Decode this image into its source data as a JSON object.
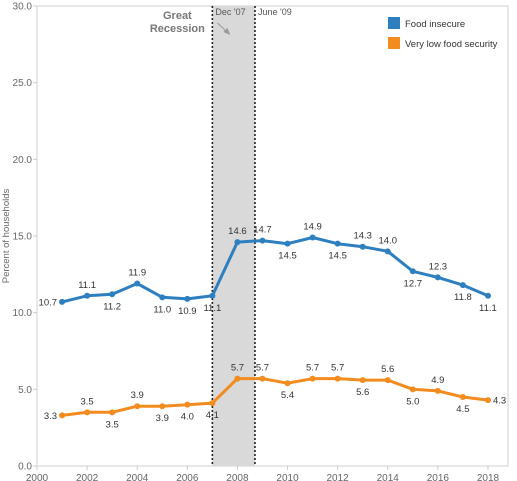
{
  "chart_data": {
    "type": "line",
    "ylabel": "Percent of households",
    "xlabel": "",
    "ylim": [
      0,
      30
    ],
    "xlim": [
      2000,
      2018.8
    ],
    "y_ticks": [
      0,
      5,
      10,
      15,
      20,
      25,
      30
    ],
    "y_tick_labels": [
      "0.0",
      "5.0",
      "10.0",
      "15.0",
      "20.0",
      "25.0",
      "30.0"
    ],
    "x_ticks": [
      2000,
      2002,
      2004,
      2006,
      2008,
      2010,
      2012,
      2014,
      2016,
      2018
    ],
    "x_tick_labels": [
      "2000",
      "2002",
      "2004",
      "2006",
      "2008",
      "2010",
      "2012",
      "2014",
      "2016",
      "2018"
    ],
    "x": [
      2001,
      2002,
      2003,
      2004,
      2005,
      2006,
      2007,
      2008,
      2009,
      2010,
      2011,
      2012,
      2013,
      2014,
      2015,
      2016,
      2017,
      2018
    ],
    "series": [
      {
        "name": "Food insecure",
        "color": "#2e7fbf",
        "values": [
          10.7,
          11.1,
          11.2,
          11.9,
          11.0,
          10.9,
          11.1,
          14.6,
          14.7,
          14.5,
          14.9,
          14.5,
          14.3,
          14.0,
          12.7,
          12.3,
          11.8,
          11.1
        ],
        "label_positions": [
          "left",
          "above",
          "below",
          "above",
          "below",
          "below",
          "below",
          "above",
          "above",
          "below",
          "above",
          "below",
          "above",
          "above",
          "below",
          "above",
          "below",
          "below"
        ]
      },
      {
        "name": "Very low food security",
        "color": "#f28c1e",
        "values": [
          3.3,
          3.5,
          3.5,
          3.9,
          3.9,
          4.0,
          4.1,
          5.7,
          5.7,
          5.4,
          5.7,
          5.7,
          5.6,
          5.6,
          5.0,
          4.9,
          4.5,
          4.3
        ],
        "label_positions": [
          "left",
          "above",
          "below",
          "above",
          "below",
          "below",
          "below",
          "above",
          "above",
          "below",
          "above",
          "above",
          "below",
          "above",
          "below",
          "above",
          "below",
          "right"
        ]
      }
    ],
    "recession": {
      "start": 2007.0,
      "end": 2008.7,
      "start_label": "Dec '07",
      "end_label": "June '09",
      "title_line1": "Great",
      "title_line2": "Recession",
      "fill": "#d9d9d9"
    },
    "legend_position": "top-right",
    "grid": false
  }
}
